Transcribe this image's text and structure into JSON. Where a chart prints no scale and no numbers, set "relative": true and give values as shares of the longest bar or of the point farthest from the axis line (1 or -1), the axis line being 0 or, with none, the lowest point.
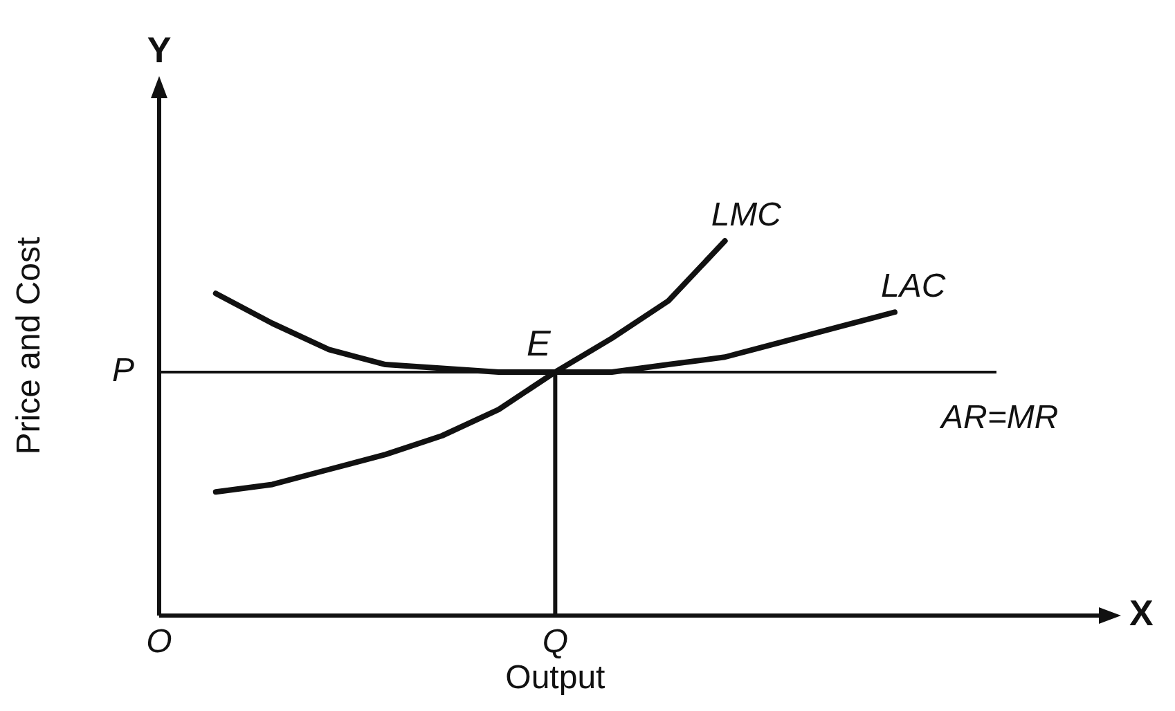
{
  "chart_data": {
    "type": "line",
    "relative": true,
    "xlabel": "Output",
    "ylabel": "Price and Cost",
    "categories": [
      "O",
      null,
      null,
      null,
      null,
      null,
      null,
      "Q",
      null,
      null,
      null,
      null,
      null,
      null,
      null,
      null,
      null,
      null
    ],
    "series": [
      {
        "name": "LMC",
        "color": "#111111",
        "values": [
          null,
          0.33,
          0.35,
          0.39,
          0.43,
          0.48,
          0.55,
          0.65,
          0.74,
          0.84,
          1.0,
          null,
          null,
          null,
          null,
          null,
          null,
          null
        ]
      },
      {
        "name": "LAC",
        "color": "#111111",
        "values": [
          null,
          0.86,
          0.78,
          0.71,
          0.67,
          0.66,
          0.65,
          0.65,
          0.65,
          0.67,
          0.69,
          0.73,
          0.77,
          0.81,
          null,
          null,
          null,
          null
        ]
      }
    ],
    "ref_lines": [
      {
        "axis": "y",
        "value": 0.65,
        "label": "P"
      },
      {
        "axis": "x",
        "value": "Q"
      }
    ],
    "annotations": [
      {
        "text": "E",
        "x": "Q",
        "y": 0.65
      },
      "AR=MR",
      "Y",
      "X"
    ],
    "marker": "none",
    "line_style": "solid",
    "legend": false
  }
}
